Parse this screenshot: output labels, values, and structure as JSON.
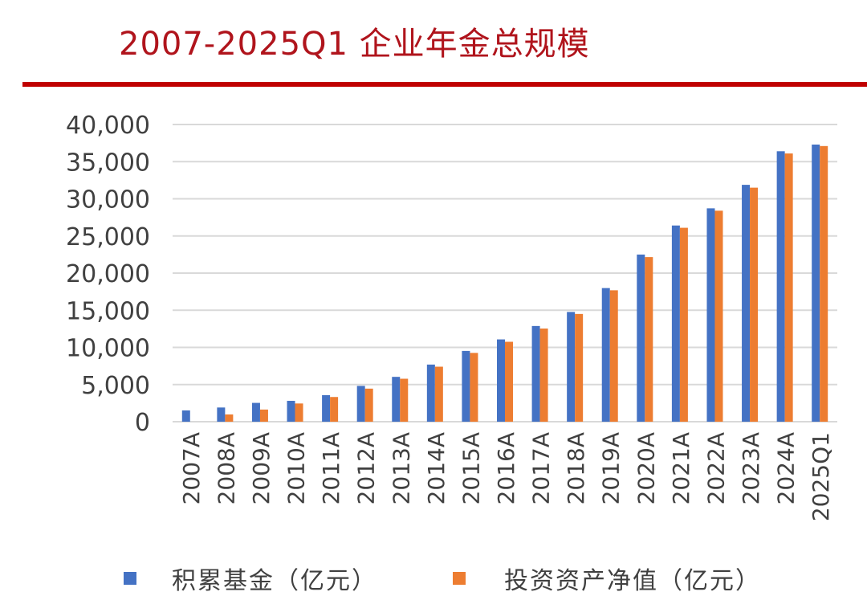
{
  "title": "2007-2025Q1 企业年金总规模",
  "colors": {
    "accent": "#c00000",
    "title": "#b0141c",
    "series1": "#4472c4",
    "series2": "#ed7d31",
    "grid": "#d9d9d9",
    "text": "#404040"
  },
  "chart_data": {
    "type": "bar",
    "categories": [
      "2007A",
      "2008A",
      "2009A",
      "2010A",
      "2011A",
      "2012A",
      "2013A",
      "2014A",
      "2015A",
      "2016A",
      "2017A",
      "2018A",
      "2019A",
      "2020A",
      "2021A",
      "2022A",
      "2023A",
      "2024A",
      "2025Q1"
    ],
    "series": [
      {
        "name": "积累基金（亿元）",
        "values": [
          1519,
          1911,
          2533,
          2809,
          3570,
          4821,
          6035,
          7689,
          9526,
          11075,
          12880,
          14770,
          17985,
          22497,
          26406,
          28717,
          31880,
          36400,
          37300
        ]
      },
      {
        "name": "投资资产净值（亿元）",
        "values": [
          0,
          975,
          1634,
          2452,
          3325,
          4451,
          5783,
          7403,
          9260,
          10756,
          12538,
          14502,
          17689,
          22152,
          26100,
          28400,
          31500,
          36100,
          37100
        ]
      }
    ],
    "ylim": [
      0,
      40000
    ],
    "yticks": [
      "0",
      "5,000",
      "10,000",
      "15,000",
      "20,000",
      "25,000",
      "30,000",
      "35,000",
      "40,000"
    ],
    "grid": true,
    "legend_position": "bottom"
  }
}
